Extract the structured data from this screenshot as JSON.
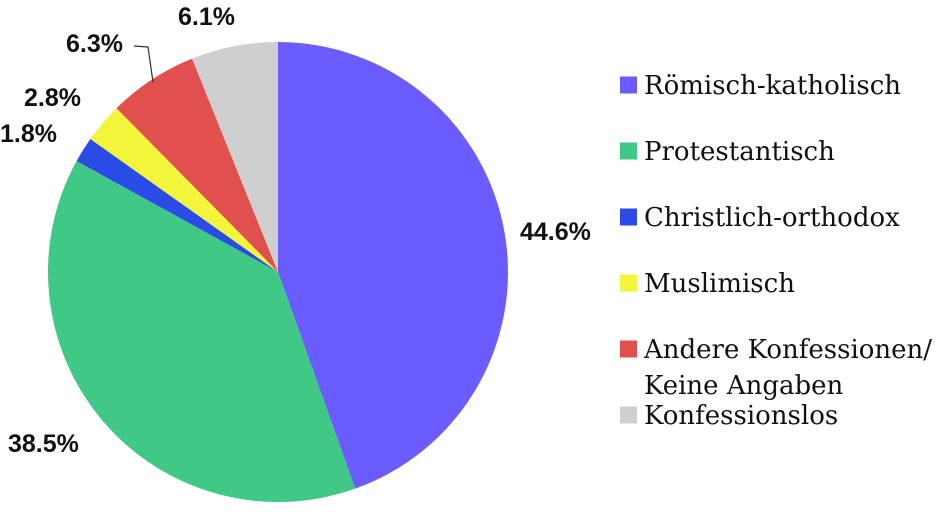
{
  "chart_data": {
    "type": "pie",
    "title": "",
    "slices": [
      {
        "label": "Römisch-katholisch",
        "value": 44.6,
        "display": "44.6%",
        "color": "#6b5cff"
      },
      {
        "label": "Protestantisch",
        "value": 38.5,
        "display": "38.5%",
        "color": "#40c887"
      },
      {
        "label": "Christlich-orthodox",
        "value": 1.8,
        "display": "1.8%",
        "color": "#2b4be6"
      },
      {
        "label": "Muslimisch",
        "value": 2.8,
        "display": "2.8%",
        "color": "#f2f53a"
      },
      {
        "label": "Andere Konfessionen/ Keine Angaben",
        "label_lines": [
          "Andere Konfessionen/",
          "Keine Angaben"
        ],
        "value": 6.3,
        "display": "6.3%",
        "color": "#e0504e"
      },
      {
        "label": "Konfessionslos",
        "value": 6.1,
        "display": "6.1%",
        "color": "#cfcfcf"
      }
    ],
    "legend": {
      "position": "right"
    }
  }
}
